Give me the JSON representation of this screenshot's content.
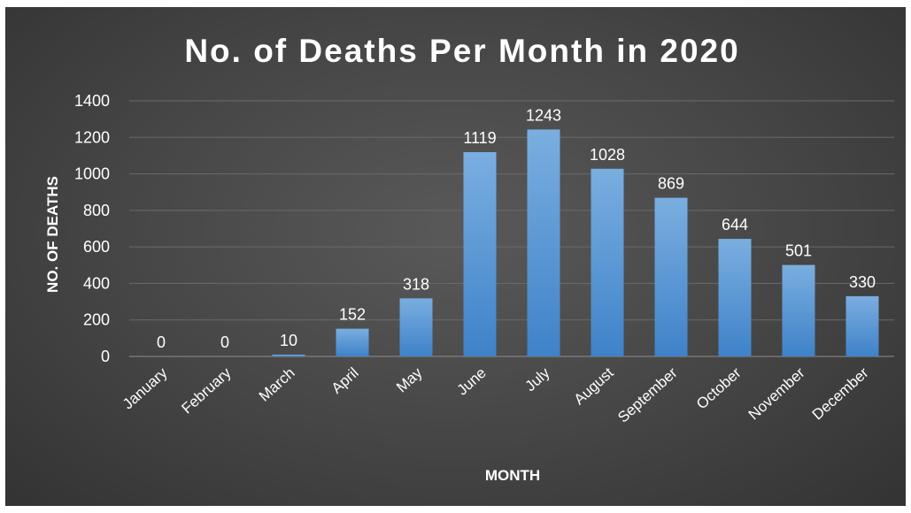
{
  "chart_data": {
    "type": "bar",
    "title": "No. of Deaths Per Month in 2020",
    "xlabel": "MONTH",
    "ylabel": "NO. OF DEATHS",
    "categories": [
      "January",
      "February",
      "March",
      "April",
      "May",
      "June",
      "July",
      "August",
      "September",
      "October",
      "November",
      "December"
    ],
    "values": [
      0,
      0,
      10,
      152,
      318,
      1119,
      1243,
      1028,
      869,
      644,
      501,
      330
    ],
    "data_labels": [
      "0",
      "0",
      "10",
      "152",
      "318",
      "1119",
      "1243",
      "1028",
      "869",
      "644",
      "501",
      "330"
    ],
    "y_ticks": [
      "0",
      "200",
      "400",
      "600",
      "800",
      "1000",
      "1200",
      "1400"
    ],
    "ylim": [
      0,
      1400
    ],
    "grid": true,
    "legend": "none",
    "bar_color": "#5b9bd5",
    "background_color": "#404040"
  }
}
